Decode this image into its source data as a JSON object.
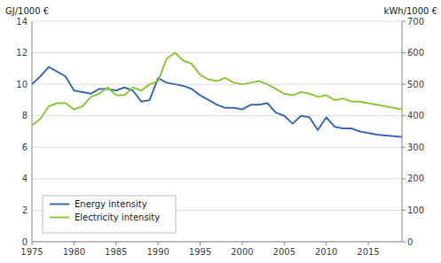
{
  "chart_data": {
    "type": "line",
    "y_label": "GJ/1000 €",
    "y2_label": "kWh/1000 €",
    "x": [
      1975,
      1976,
      1977,
      1978,
      1979,
      1980,
      1981,
      1982,
      1983,
      1984,
      1985,
      1986,
      1987,
      1988,
      1989,
      1990,
      1991,
      1992,
      1993,
      1994,
      1995,
      1996,
      1997,
      1998,
      1999,
      2000,
      2001,
      2002,
      2003,
      2004,
      2005,
      2006,
      2007,
      2008,
      2009,
      2010,
      2011,
      2012,
      2013,
      2014,
      2015,
      2016,
      2017,
      2018,
      2019
    ],
    "series": [
      {
        "name": "Energy intensity",
        "color": "#3C6CB4",
        "values": [
          10.0,
          10.5,
          11.1,
          10.8,
          10.5,
          9.6,
          9.5,
          9.4,
          9.7,
          9.7,
          9.6,
          9.8,
          9.6,
          8.9,
          9.0,
          10.4,
          10.1,
          10.0,
          9.9,
          9.7,
          9.3,
          9.0,
          8.7,
          8.5,
          8.5,
          8.4,
          8.7,
          8.7,
          8.8,
          8.2,
          8.0,
          7.5,
          8.0,
          7.9,
          7.1,
          7.9,
          7.3,
          7.2,
          7.2,
          7.0,
          6.9,
          6.8,
          6.75,
          6.7,
          6.65
        ]
      },
      {
        "name": "Electricity intensity",
        "color": "#8DC63F",
        "axis": "y2",
        "values": [
          370,
          390,
          430,
          440,
          440,
          420,
          430,
          460,
          470,
          490,
          465,
          465,
          490,
          480,
          500,
          510,
          580,
          600,
          575,
          565,
          530,
          515,
          510,
          520,
          505,
          500,
          505,
          510,
          500,
          485,
          470,
          465,
          475,
          470,
          460,
          465,
          450,
          455,
          445,
          445,
          440,
          435,
          430,
          425,
          420
        ]
      }
    ],
    "xlim": [
      1975,
      2019
    ],
    "xticks": [
      1975,
      1980,
      1985,
      1990,
      1995,
      2000,
      2005,
      2010,
      2015
    ],
    "ylim": [
      0,
      14
    ],
    "yticks": [
      0,
      2,
      4,
      6,
      8,
      10,
      12,
      14
    ],
    "y2lim": [
      0,
      700
    ],
    "y2ticks": [
      0,
      100,
      200,
      300,
      400,
      500,
      600,
      700
    ],
    "grid": true,
    "legend": "lower left"
  }
}
